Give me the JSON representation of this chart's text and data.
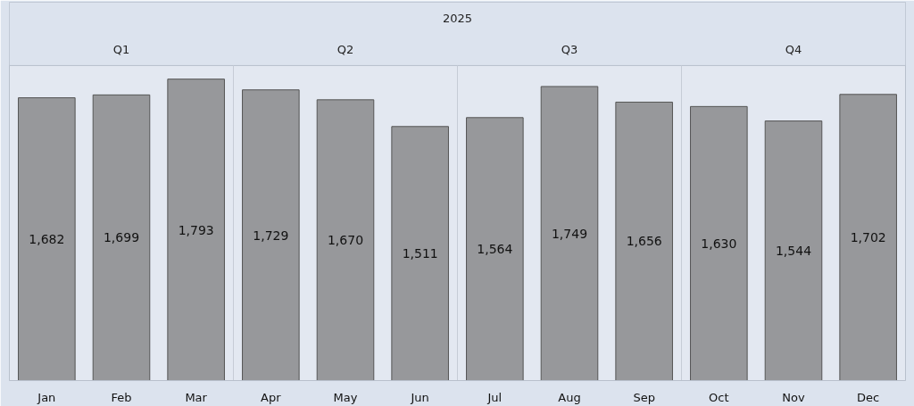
{
  "chart_data": {
    "type": "bar",
    "title": "2025",
    "categories": [
      "Jan",
      "Feb",
      "Mar",
      "Apr",
      "May",
      "Jun",
      "Jul",
      "Aug",
      "Sep",
      "Oct",
      "Nov",
      "Dec"
    ],
    "values": [
      1682,
      1699,
      1793,
      1729,
      1670,
      1511,
      1564,
      1749,
      1656,
      1630,
      1544,
      1702
    ],
    "value_labels": [
      "1,682",
      "1,699",
      "1,793",
      "1,729",
      "1,670",
      "1,511",
      "1,564",
      "1,749",
      "1,656",
      "1,630",
      "1,544",
      "1,702"
    ],
    "color": "#97989b",
    "annotations": [
      "Q1",
      "Q2",
      "Q3",
      "Q4"
    ]
  }
}
